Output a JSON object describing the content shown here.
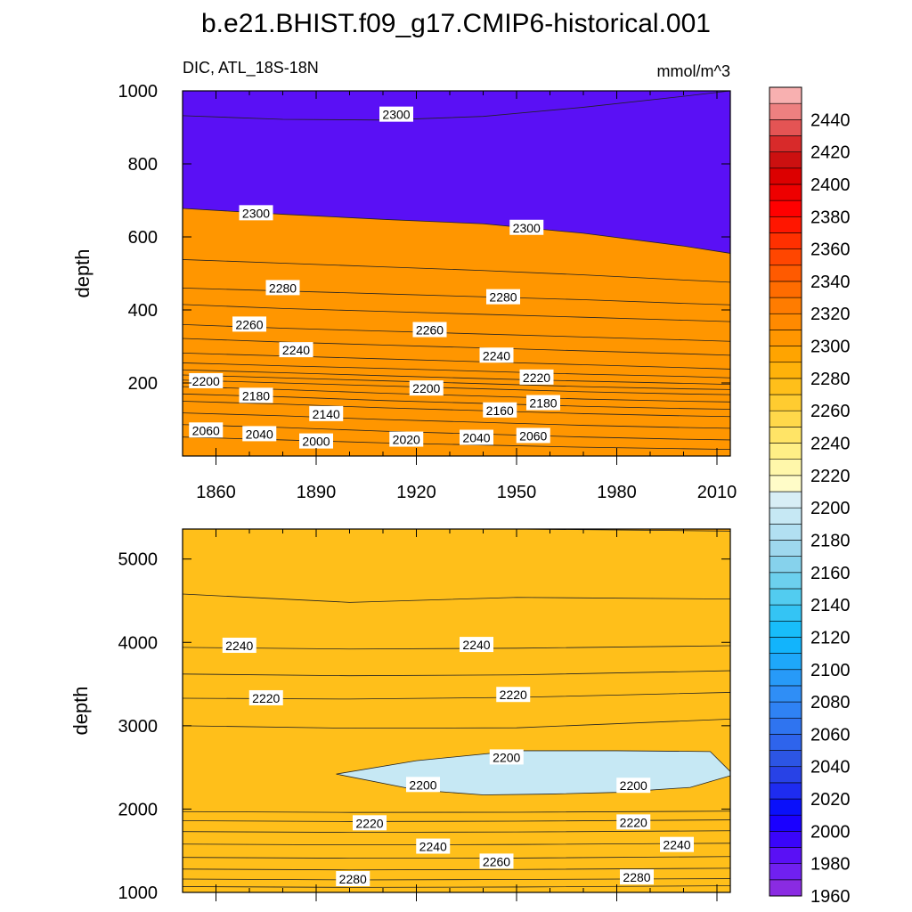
{
  "figure": {
    "title": "b.e21.BHIST.f09_g17.CMIP6-historical.001",
    "left_subtitle": "DIC, ATL_18S-18N",
    "right_subtitle": "mmol/m^3"
  },
  "chart_data": [
    {
      "type": "contour",
      "panel": "upper",
      "ylabel": "depth",
      "xlabel": "",
      "xlim": [
        1850,
        2014
      ],
      "ylim": [
        1000,
        0
      ],
      "y_reversed": true,
      "xticks": [
        1860,
        1890,
        1920,
        1950,
        1980,
        2010
      ],
      "yticks": [
        200,
        400,
        600,
        800,
        1000
      ],
      "contour_interval": 10,
      "contours": [
        {
          "level": 2300,
          "x": [
            1850,
            1880,
            1910,
            1940,
            1970,
            2000,
            2014
          ],
          "y": [
            678,
            662,
            648,
            636,
            610,
            575,
            555
          ]
        },
        {
          "level": 2290,
          "x": [
            1850,
            1880,
            1910,
            1940,
            1970,
            2000,
            2014
          ],
          "y": [
            538,
            528,
            518,
            508,
            496,
            482,
            476
          ]
        },
        {
          "level": 2280,
          "x": [
            1850,
            1880,
            1910,
            1940,
            1970,
            2000,
            2014
          ],
          "y": [
            460,
            452,
            444,
            436,
            428,
            418,
            414
          ]
        },
        {
          "level": 2270,
          "x": [
            1850,
            1880,
            1910,
            1940,
            1970,
            2000,
            2014
          ],
          "y": [
            415,
            404,
            396,
            388,
            380,
            372,
            368
          ]
        },
        {
          "level": 2260,
          "x": [
            1850,
            1880,
            1910,
            1940,
            1970,
            2000,
            2014
          ],
          "y": [
            360,
            350,
            342,
            334,
            326,
            318,
            314
          ]
        },
        {
          "level": 2250,
          "x": [
            1850,
            1880,
            1910,
            1940,
            1970,
            2000,
            2014
          ],
          "y": [
            322,
            312,
            304,
            296,
            288,
            280,
            276
          ]
        },
        {
          "level": 2240,
          "x": [
            1850,
            1880,
            1910,
            1940,
            1970,
            2000,
            2014
          ],
          "y": [
            282,
            274,
            266,
            258,
            250,
            242,
            238
          ]
        },
        {
          "level": 2230,
          "x": [
            1850,
            1880,
            1910,
            1940,
            1970,
            2000,
            2014
          ],
          "y": [
            255,
            247,
            240,
            232,
            224,
            218,
            214
          ]
        },
        {
          "level": 2220,
          "x": [
            1850,
            1880,
            1910,
            1940,
            1970,
            2000,
            2014
          ],
          "y": [
            236,
            228,
            220,
            212,
            205,
            199,
            196
          ]
        },
        {
          "level": 2210,
          "x": [
            1850,
            1880,
            1910,
            1940,
            1970,
            2000,
            2014
          ],
          "y": [
            222,
            214,
            206,
            198,
            190,
            184,
            182
          ]
        },
        {
          "level": 2200,
          "x": [
            1850,
            1880,
            1910,
            1940,
            1970,
            2000,
            2014
          ],
          "y": [
            208,
            200,
            192,
            184,
            176,
            170,
            168
          ]
        },
        {
          "level": 2180,
          "x": [
            1850,
            1880,
            1910,
            1940,
            1970,
            2000,
            2014
          ],
          "y": [
            190,
            182,
            172,
            164,
            156,
            150,
            148
          ]
        },
        {
          "level": 2160,
          "x": [
            1850,
            1880,
            1910,
            1940,
            1970,
            2000,
            2014
          ],
          "y": [
            170,
            162,
            152,
            144,
            136,
            130,
            128
          ]
        },
        {
          "level": 2140,
          "x": [
            1850,
            1880,
            1910,
            1940,
            1970,
            2000,
            2014
          ],
          "y": [
            150,
            142,
            132,
            124,
            116,
            110,
            108
          ]
        },
        {
          "level": 2100,
          "x": [
            1850,
            1880,
            1910,
            1940,
            1970,
            2000,
            2014
          ],
          "y": [
            118,
            110,
            100,
            92,
            84,
            78,
            76
          ]
        },
        {
          "level": 2060,
          "x": [
            1850,
            1880,
            1910,
            1940,
            1970,
            2000,
            2014
          ],
          "y": [
            86,
            78,
            68,
            60,
            52,
            46,
            44
          ]
        },
        {
          "level": 2020,
          "x": [
            1850,
            1880,
            1910,
            1940,
            1970,
            2000,
            2014
          ],
          "y": [
            52,
            44,
            36,
            30,
            24,
            20,
            18
          ]
        },
        {
          "level": 2300,
          "x": [
            1850,
            1880,
            1910,
            1940,
            1970,
            2000,
            2014
          ],
          "y": [
            932,
            922,
            920,
            930,
            955,
            985,
            1000
          ]
        }
      ],
      "contour_labels": [
        {
          "text": "2060",
          "x": 1857,
          "y": 70
        },
        {
          "text": "2040",
          "x": 1873,
          "y": 60
        },
        {
          "text": "2000",
          "x": 1890,
          "y": 40
        },
        {
          "text": "2020",
          "x": 1917,
          "y": 45
        },
        {
          "text": "2040",
          "x": 1938,
          "y": 50
        },
        {
          "text": "2060",
          "x": 1955,
          "y": 55
        },
        {
          "text": "2140",
          "x": 1893,
          "y": 115
        },
        {
          "text": "2160",
          "x": 1945,
          "y": 125
        },
        {
          "text": "2180",
          "x": 1872,
          "y": 165
        },
        {
          "text": "2180",
          "x": 1958,
          "y": 145
        },
        {
          "text": "2200",
          "x": 1857,
          "y": 205
        },
        {
          "text": "2200",
          "x": 1923,
          "y": 185
        },
        {
          "text": "2220",
          "x": 1956,
          "y": 215
        },
        {
          "text": "2240",
          "x": 1884,
          "y": 290
        },
        {
          "text": "2240",
          "x": 1944,
          "y": 275
        },
        {
          "text": "2260",
          "x": 1870,
          "y": 360
        },
        {
          "text": "2260",
          "x": 1924,
          "y": 345
        },
        {
          "text": "2280",
          "x": 1880,
          "y": 460
        },
        {
          "text": "2280",
          "x": 1946,
          "y": 435
        },
        {
          "text": "2300",
          "x": 1872,
          "y": 665
        },
        {
          "text": "2300",
          "x": 1953,
          "y": 625
        },
        {
          "text": "2300",
          "x": 1914,
          "y": 935
        }
      ],
      "fills": {
        "top": 1985,
        "bottom": 2305
      }
    },
    {
      "type": "contour",
      "panel": "lower",
      "ylabel": "depth",
      "xlabel": "",
      "xlim": [
        1850,
        2014
      ],
      "ylim": [
        5360,
        1000
      ],
      "y_reversed": true,
      "xticks": [
        1860,
        1890,
        1920,
        1950,
        1980,
        2010
      ],
      "yticks": [
        1000,
        2000,
        3000,
        4000,
        5000
      ],
      "contour_interval": 10,
      "contours": [
        {
          "level": 2290,
          "x": [
            1850,
            1900,
            1950,
            2014
          ],
          "y": [
            1070,
            1060,
            1065,
            1080
          ]
        },
        {
          "level": 2280,
          "x": [
            1850,
            1900,
            1950,
            2014
          ],
          "y": [
            1160,
            1150,
            1155,
            1165
          ]
        },
        {
          "level": 2270,
          "x": [
            1850,
            1900,
            1950,
            2014
          ],
          "y": [
            1280,
            1270,
            1275,
            1290
          ]
        },
        {
          "level": 2260,
          "x": [
            1850,
            1900,
            1950,
            2014
          ],
          "y": [
            1420,
            1410,
            1412,
            1430
          ]
        },
        {
          "level": 2250,
          "x": [
            1850,
            1900,
            1950,
            2014
          ],
          "y": [
            1580,
            1570,
            1575,
            1590
          ]
        },
        {
          "level": 2240,
          "x": [
            1850,
            1900,
            1950,
            2014
          ],
          "y": [
            1730,
            1720,
            1725,
            1740
          ]
        },
        {
          "level": 2230,
          "x": [
            1850,
            1900,
            1950,
            2014
          ],
          "y": [
            1860,
            1850,
            1855,
            1870
          ]
        },
        {
          "level": 2220,
          "x": [
            1850,
            1900,
            1950,
            2014
          ],
          "y": [
            1970,
            1960,
            1962,
            1975
          ]
        },
        {
          "level": 2220,
          "x": [
            1850,
            1900,
            1950,
            2014
          ],
          "y": [
            3000,
            2970,
            2975,
            3080
          ]
        },
        {
          "level": 2230,
          "x": [
            1850,
            1900,
            1950,
            2014
          ],
          "y": [
            3330,
            3320,
            3340,
            3400
          ]
        },
        {
          "level": 2240,
          "x": [
            1850,
            1900,
            1950,
            2014
          ],
          "y": [
            3620,
            3600,
            3610,
            3660
          ]
        },
        {
          "level": 2250,
          "x": [
            1850,
            1900,
            1950,
            2014
          ],
          "y": [
            3940,
            3920,
            3930,
            3960
          ]
        },
        {
          "level": 2260,
          "x": [
            1850,
            1900,
            1950,
            2014
          ],
          "y": [
            4580,
            4480,
            4540,
            4520
          ]
        },
        {
          "level": 2270,
          "x": [
            1850,
            1900,
            1950,
            2014
          ],
          "y": [
            5360,
            5360,
            5360,
            5335
          ]
        }
      ],
      "lens": {
        "level": 2200,
        "x": [
          1896,
          1920,
          1940,
          1960,
          1980,
          2002,
          2014,
          2014,
          2008,
          1980,
          1950,
          1920,
          1896
        ],
        "y": [
          2420,
          2230,
          2170,
          2180,
          2200,
          2260,
          2400,
          2450,
          2690,
          2700,
          2700,
          2580,
          2420
        ]
      },
      "contour_labels": [
        {
          "text": "2280",
          "x": 1901,
          "y": 1160
        },
        {
          "text": "2280",
          "x": 1986,
          "y": 1180
        },
        {
          "text": "2260",
          "x": 1944,
          "y": 1370
        },
        {
          "text": "2240",
          "x": 1925,
          "y": 1550
        },
        {
          "text": "2240",
          "x": 1998,
          "y": 1570
        },
        {
          "text": "2220",
          "x": 1906,
          "y": 1830
        },
        {
          "text": "2220",
          "x": 1985,
          "y": 1840
        },
        {
          "text": "2200",
          "x": 1922,
          "y": 2290
        },
        {
          "text": "2200",
          "x": 1985,
          "y": 2280
        },
        {
          "text": "2200",
          "x": 1947,
          "y": 2620
        },
        {
          "text": "2220",
          "x": 1875,
          "y": 3330
        },
        {
          "text": "2220",
          "x": 1949,
          "y": 3370
        },
        {
          "text": "2240",
          "x": 1867,
          "y": 3960
        },
        {
          "text": "2240",
          "x": 1938,
          "y": 3970
        }
      ],
      "fills": {
        "top": 2295,
        "bottom": 2255
      }
    }
  ],
  "colorbar": {
    "levels": [
      1960,
      1970,
      1980,
      1990,
      2000,
      2010,
      2020,
      2030,
      2040,
      2050,
      2060,
      2070,
      2080,
      2090,
      2100,
      2110,
      2120,
      2130,
      2140,
      2150,
      2160,
      2170,
      2180,
      2190,
      2200,
      2210,
      2220,
      2230,
      2240,
      2250,
      2260,
      2270,
      2280,
      2290,
      2300,
      2310,
      2320,
      2330,
      2340,
      2350,
      2360,
      2370,
      2380,
      2390,
      2400,
      2410,
      2420,
      2430,
      2440,
      2450
    ],
    "labels": [
      "1960",
      "1980",
      "2000",
      "2020",
      "2040",
      "2060",
      "2080",
      "2100",
      "2120",
      "2140",
      "2160",
      "2180",
      "2200",
      "2220",
      "2240",
      "2260",
      "2280",
      "2300",
      "2320",
      "2340",
      "2360",
      "2380",
      "2400",
      "2420",
      "2440"
    ],
    "colors": [
      "#8a2be2",
      "#7020f0",
      "#5a10f5",
      "#3a05fa",
      "#1a00ff",
      "#0a10fa",
      "#1e2cf0",
      "#2842e6",
      "#2c55e4",
      "#2e64ec",
      "#2f74f0",
      "#2f82f4",
      "#2f8ef6",
      "#279af8",
      "#1ea8fa",
      "#12b4fc",
      "#18bdfa",
      "#34c4f4",
      "#52ccf0",
      "#6cd0ee",
      "#86d2ec",
      "#9ed8ee",
      "#b2e0f2",
      "#c6e8f4",
      "#d8eef6",
      "#fffcc8",
      "#fff7aa",
      "#ffef86",
      "#ffe466",
      "#ffd84a",
      "#ffcc30",
      "#ffbf1a",
      "#ffb20a",
      "#ffa400",
      "#ff9600",
      "#ff8a00",
      "#ff7c00",
      "#ff6c00",
      "#ff5a00",
      "#ff4600",
      "#ff3000",
      "#ff1600",
      "#ff0000",
      "#ee0000",
      "#dc0000",
      "#cc1010",
      "#d82a2a",
      "#e45454",
      "#ee8080",
      "#f8b0b0"
    ]
  }
}
